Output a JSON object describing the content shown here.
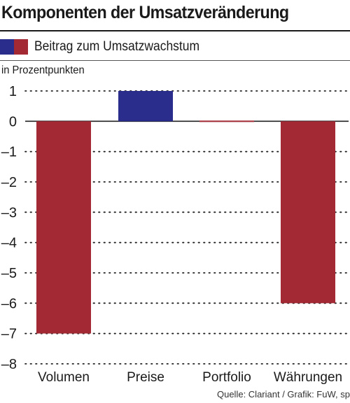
{
  "title": "Komponenten der Umsatzveränderung",
  "legend": {
    "label": "Beitrag zum Umsatzwachstum"
  },
  "unit_label": "in Prozentpunkten",
  "source": "Quelle: Clariant / Grafik: FuW, sp",
  "colors": {
    "positive": "#2b2d8c",
    "negative": "#a32a34"
  },
  "chart_data": {
    "type": "bar",
    "title": "Komponenten der Umsatzveränderung",
    "xlabel": "",
    "ylabel": "in Prozentpunkten",
    "categories": [
      "Volumen",
      "Preise",
      "Portfolio",
      "Währungen"
    ],
    "series": [
      {
        "name": "Beitrag zum Umsatzwachstum",
        "values": [
          -7,
          1,
          0,
          -6
        ]
      }
    ],
    "ylim": [
      -8,
      1
    ],
    "yticks": [
      1,
      0,
      -1,
      -2,
      -3,
      -4,
      -5,
      -6,
      -7,
      -8
    ],
    "ytick_labels": [
      "1",
      "0",
      "–1",
      "–2",
      "–3",
      "–4",
      "–5",
      "–6",
      "–7",
      "–8"
    ],
    "grid": "dotted horizontal",
    "legend_position": "top-left"
  }
}
